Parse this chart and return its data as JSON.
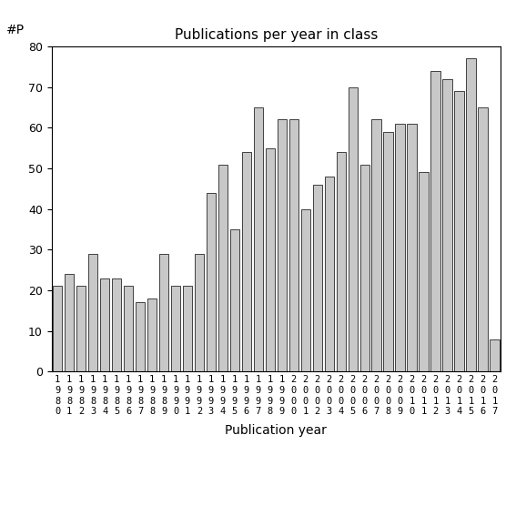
{
  "title": "Publications per year in class",
  "xlabel": "Publication year",
  "ylabel": "#P",
  "ylim": [
    0,
    80
  ],
  "yticks": [
    0,
    10,
    20,
    30,
    40,
    50,
    60,
    70,
    80
  ],
  "years": [
    "1980",
    "1981",
    "1982",
    "1983",
    "1984",
    "1985",
    "1986",
    "1987",
    "1988",
    "1989",
    "1990",
    "1991",
    "1992",
    "1993",
    "1994",
    "1995",
    "1996",
    "1997",
    "1998",
    "1999",
    "2000",
    "2001",
    "2002",
    "2003",
    "2004",
    "2005",
    "2006",
    "2007",
    "2008",
    "2009",
    "2010",
    "2011",
    "2012",
    "2013",
    "2014",
    "2015",
    "2016",
    "2017"
  ],
  "values": [
    21,
    24,
    21,
    29,
    23,
    23,
    21,
    17,
    18,
    29,
    21,
    21,
    29,
    44,
    51,
    35,
    54,
    65,
    55,
    62,
    62,
    40,
    46,
    48,
    54,
    70,
    51,
    62,
    59,
    61,
    61,
    49,
    74,
    72,
    69,
    77,
    65,
    8
  ],
  "bar_color": "#c8c8c8",
  "bar_edgecolor": "#000000",
  "background_color": "#ffffff",
  "title_fontsize": 11,
  "xlabel_fontsize": 10,
  "ylabel_fontsize": 10,
  "ytick_fontsize": 9,
  "xtick_fontsize": 7.5
}
